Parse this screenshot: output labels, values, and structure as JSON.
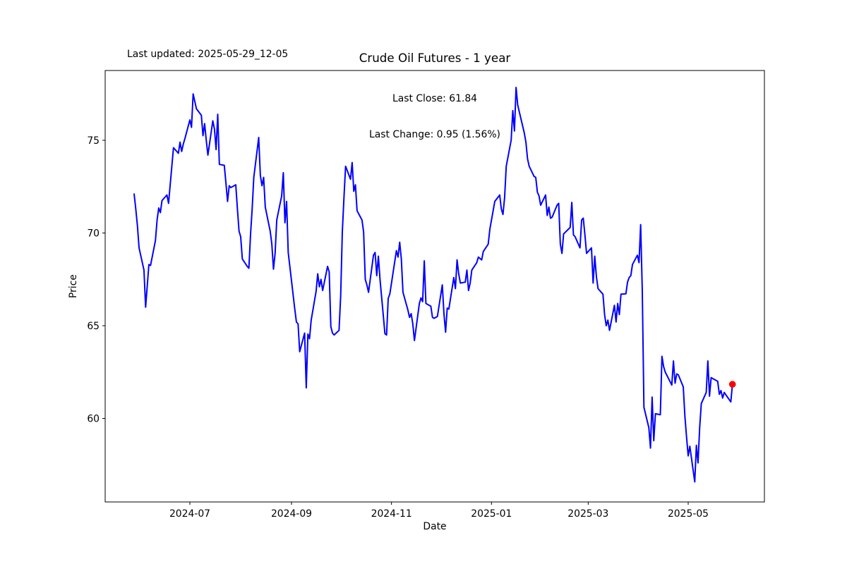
{
  "header": {
    "last_updated": "Last updated: 2025-05-29_12-05",
    "title": "Crude Oil Futures - 1 year"
  },
  "annotation": {
    "last_close_line": "Last Close: 61.84",
    "last_change_line": "Last Change: 0.95 (1.56%)"
  },
  "colors": {
    "line": "#0000ff",
    "last_point": "#ff0000",
    "frame": "#000000",
    "background": "#ffffff",
    "text": "#000000"
  },
  "chart_data": {
    "type": "line",
    "title": "Crude Oil Futures - 1 year",
    "xlabel": "Date",
    "ylabel": "Price",
    "legend": "none",
    "grid": false,
    "last_close": 61.84,
    "last_change": 0.95,
    "last_change_pct": 1.56,
    "ylim": [
      55.4,
      78.95
    ],
    "xlim": [
      "2024-05-10",
      "2025-06-16"
    ],
    "yticks": [
      60,
      65,
      70,
      75
    ],
    "xticks": [
      {
        "date": "2024-07-01",
        "label": "2024-07"
      },
      {
        "date": "2024-09-01",
        "label": "2024-09"
      },
      {
        "date": "2024-11-01",
        "label": "2024-11"
      },
      {
        "date": "2025-01-01",
        "label": "2025-01"
      },
      {
        "date": "2025-03-01",
        "label": "2025-03"
      },
      {
        "date": "2025-05-01",
        "label": "2025-05"
      }
    ],
    "series": [
      {
        "name": "price",
        "points": [
          [
            "2024-05-28",
            72.1
          ],
          [
            "2024-05-29",
            71.3
          ],
          [
            "2024-05-30",
            70.4
          ],
          [
            "2024-05-31",
            69.2
          ],
          [
            "2024-06-03",
            68.0
          ],
          [
            "2024-06-04",
            66.0
          ],
          [
            "2024-06-06",
            68.3
          ],
          [
            "2024-06-07",
            68.25
          ],
          [
            "2024-06-10",
            69.6
          ],
          [
            "2024-06-11",
            70.7
          ],
          [
            "2024-06-12",
            71.35
          ],
          [
            "2024-06-13",
            71.1
          ],
          [
            "2024-06-14",
            71.75
          ],
          [
            "2024-06-17",
            72.05
          ],
          [
            "2024-06-18",
            71.6
          ],
          [
            "2024-06-20",
            73.6
          ],
          [
            "2024-06-21",
            74.6
          ],
          [
            "2024-06-24",
            74.3
          ],
          [
            "2024-06-25",
            74.9
          ],
          [
            "2024-06-26",
            74.4
          ],
          [
            "2024-06-27",
            74.8
          ],
          [
            "2024-06-28",
            75.1
          ],
          [
            "2024-07-01",
            76.1
          ],
          [
            "2024-07-02",
            75.7
          ],
          [
            "2024-07-03",
            77.5
          ],
          [
            "2024-07-05",
            76.7
          ],
          [
            "2024-07-08",
            76.35
          ],
          [
            "2024-07-09",
            75.25
          ],
          [
            "2024-07-10",
            75.9
          ],
          [
            "2024-07-11",
            75.0
          ],
          [
            "2024-07-12",
            74.2
          ],
          [
            "2024-07-15",
            76.05
          ],
          [
            "2024-07-16",
            75.6
          ],
          [
            "2024-07-17",
            74.5
          ],
          [
            "2024-07-18",
            76.4
          ],
          [
            "2024-07-19",
            73.7
          ],
          [
            "2024-07-22",
            73.65
          ],
          [
            "2024-07-23",
            72.7
          ],
          [
            "2024-07-24",
            71.7
          ],
          [
            "2024-07-25",
            72.55
          ],
          [
            "2024-07-26",
            72.45
          ],
          [
            "2024-07-29",
            72.6
          ],
          [
            "2024-07-30",
            71.3
          ],
          [
            "2024-07-31",
            70.1
          ],
          [
            "2024-08-01",
            69.8
          ],
          [
            "2024-08-02",
            68.6
          ],
          [
            "2024-08-05",
            68.2
          ],
          [
            "2024-08-06",
            68.1
          ],
          [
            "2024-08-07",
            69.9
          ],
          [
            "2024-08-08",
            71.3
          ],
          [
            "2024-08-09",
            73.0
          ],
          [
            "2024-08-12",
            75.15
          ],
          [
            "2024-08-13",
            73.1
          ],
          [
            "2024-08-14",
            72.55
          ],
          [
            "2024-08-15",
            73.0
          ],
          [
            "2024-08-16",
            71.4
          ],
          [
            "2024-08-19",
            70.1
          ],
          [
            "2024-08-20",
            69.4
          ],
          [
            "2024-08-21",
            68.05
          ],
          [
            "2024-08-22",
            68.9
          ],
          [
            "2024-08-23",
            70.7
          ],
          [
            "2024-08-26",
            72.0
          ],
          [
            "2024-08-27",
            73.25
          ],
          [
            "2024-08-28",
            70.55
          ],
          [
            "2024-08-29",
            71.7
          ],
          [
            "2024-08-30",
            68.95
          ],
          [
            "2024-09-03",
            65.9
          ],
          [
            "2024-09-04",
            65.2
          ],
          [
            "2024-09-05",
            65.1
          ],
          [
            "2024-09-06",
            63.6
          ],
          [
            "2024-09-09",
            64.6
          ],
          [
            "2024-09-10",
            61.65
          ],
          [
            "2024-09-11",
            64.55
          ],
          [
            "2024-09-12",
            64.3
          ],
          [
            "2024-09-13",
            65.3
          ],
          [
            "2024-09-16",
            66.85
          ],
          [
            "2024-09-17",
            67.8
          ],
          [
            "2024-09-18",
            67.1
          ],
          [
            "2024-09-19",
            67.5
          ],
          [
            "2024-09-20",
            66.9
          ],
          [
            "2024-09-23",
            68.2
          ],
          [
            "2024-09-24",
            67.9
          ],
          [
            "2024-09-25",
            64.95
          ],
          [
            "2024-09-26",
            64.6
          ],
          [
            "2024-09-27",
            64.5
          ],
          [
            "2024-09-30",
            64.75
          ],
          [
            "2024-10-01",
            66.6
          ],
          [
            "2024-10-02",
            70.05
          ],
          [
            "2024-10-03",
            71.9
          ],
          [
            "2024-10-04",
            73.6
          ],
          [
            "2024-10-07",
            72.9
          ],
          [
            "2024-10-08",
            73.8
          ],
          [
            "2024-10-09",
            72.25
          ],
          [
            "2024-10-10",
            72.6
          ],
          [
            "2024-10-11",
            71.2
          ],
          [
            "2024-10-14",
            70.7
          ],
          [
            "2024-10-15",
            70.05
          ],
          [
            "2024-10-16",
            67.5
          ],
          [
            "2024-10-17",
            67.2
          ],
          [
            "2024-10-18",
            66.8
          ],
          [
            "2024-10-21",
            68.8
          ],
          [
            "2024-10-22",
            68.95
          ],
          [
            "2024-10-23",
            67.7
          ],
          [
            "2024-10-24",
            68.75
          ],
          [
            "2024-10-25",
            67.5
          ],
          [
            "2024-10-28",
            64.57
          ],
          [
            "2024-10-29",
            64.5
          ],
          [
            "2024-10-30",
            66.47
          ],
          [
            "2024-10-31",
            66.72
          ],
          [
            "2024-11-01",
            67.3
          ],
          [
            "2024-11-04",
            69.05
          ],
          [
            "2024-11-05",
            68.7
          ],
          [
            "2024-11-06",
            69.5
          ],
          [
            "2024-11-07",
            68.6
          ],
          [
            "2024-11-08",
            66.8
          ],
          [
            "2024-11-11",
            65.85
          ],
          [
            "2024-11-12",
            65.45
          ],
          [
            "2024-11-13",
            65.65
          ],
          [
            "2024-11-14",
            65.1
          ],
          [
            "2024-11-15",
            64.2
          ],
          [
            "2024-11-18",
            66.2
          ],
          [
            "2024-11-19",
            66.5
          ],
          [
            "2024-11-20",
            66.3
          ],
          [
            "2024-11-21",
            68.5
          ],
          [
            "2024-11-22",
            66.2
          ],
          [
            "2024-11-25",
            66.05
          ],
          [
            "2024-11-26",
            65.45
          ],
          [
            "2024-11-27",
            65.4
          ],
          [
            "2024-11-29",
            65.5
          ],
          [
            "2024-12-02",
            67.2
          ],
          [
            "2024-12-03",
            65.65
          ],
          [
            "2024-12-04",
            64.65
          ],
          [
            "2024-12-05",
            65.95
          ],
          [
            "2024-12-06",
            65.9
          ],
          [
            "2024-12-09",
            67.6
          ],
          [
            "2024-12-10",
            67.0
          ],
          [
            "2024-12-11",
            68.55
          ],
          [
            "2024-12-12",
            67.8
          ],
          [
            "2024-12-13",
            67.3
          ],
          [
            "2024-12-16",
            67.35
          ],
          [
            "2024-12-17",
            68.0
          ],
          [
            "2024-12-18",
            66.9
          ],
          [
            "2024-12-19",
            67.3
          ],
          [
            "2024-12-20",
            68.0
          ],
          [
            "2024-12-23",
            68.4
          ],
          [
            "2024-12-24",
            68.7
          ],
          [
            "2024-12-26",
            68.55
          ],
          [
            "2024-12-27",
            69.0
          ],
          [
            "2024-12-30",
            69.4
          ],
          [
            "2024-12-31",
            70.2
          ],
          [
            "2025-01-02",
            71.2
          ],
          [
            "2025-01-03",
            71.7
          ],
          [
            "2025-01-06",
            72.05
          ],
          [
            "2025-01-07",
            71.3
          ],
          [
            "2025-01-08",
            71.0
          ],
          [
            "2025-01-09",
            71.9
          ],
          [
            "2025-01-10",
            73.6
          ],
          [
            "2025-01-13",
            75.0
          ],
          [
            "2025-01-14",
            76.6
          ],
          [
            "2025-01-15",
            75.5
          ],
          [
            "2025-01-16",
            77.85
          ],
          [
            "2025-01-17",
            76.9
          ],
          [
            "2025-01-21",
            75.4
          ],
          [
            "2025-01-22",
            74.9
          ],
          [
            "2025-01-23",
            74.0
          ],
          [
            "2025-01-24",
            73.6
          ],
          [
            "2025-01-27",
            73.05
          ],
          [
            "2025-01-28",
            73.0
          ],
          [
            "2025-01-29",
            72.2
          ],
          [
            "2025-01-30",
            72.0
          ],
          [
            "2025-01-31",
            71.5
          ],
          [
            "2025-02-03",
            72.05
          ],
          [
            "2025-02-04",
            70.95
          ],
          [
            "2025-02-05",
            71.4
          ],
          [
            "2025-02-06",
            70.8
          ],
          [
            "2025-02-07",
            70.85
          ],
          [
            "2025-02-10",
            71.5
          ],
          [
            "2025-02-11",
            71.6
          ],
          [
            "2025-02-12",
            69.4
          ],
          [
            "2025-02-13",
            68.9
          ],
          [
            "2025-02-14",
            69.95
          ],
          [
            "2025-02-18",
            70.3
          ],
          [
            "2025-02-19",
            71.65
          ],
          [
            "2025-02-20",
            69.9
          ],
          [
            "2025-02-21",
            69.8
          ],
          [
            "2025-02-24",
            69.2
          ],
          [
            "2025-02-25",
            70.7
          ],
          [
            "2025-02-26",
            70.8
          ],
          [
            "2025-02-27",
            69.9
          ],
          [
            "2025-02-28",
            68.9
          ],
          [
            "2025-03-03",
            69.2
          ],
          [
            "2025-03-04",
            67.3
          ],
          [
            "2025-03-05",
            68.75
          ],
          [
            "2025-03-06",
            67.65
          ],
          [
            "2025-03-07",
            67.0
          ],
          [
            "2025-03-10",
            66.7
          ],
          [
            "2025-03-11",
            65.6
          ],
          [
            "2025-03-12",
            65.0
          ],
          [
            "2025-03-13",
            65.3
          ],
          [
            "2025-03-14",
            64.75
          ],
          [
            "2025-03-17",
            66.1
          ],
          [
            "2025-03-18",
            65.2
          ],
          [
            "2025-03-19",
            66.2
          ],
          [
            "2025-03-20",
            65.6
          ],
          [
            "2025-03-21",
            66.7
          ],
          [
            "2025-03-24",
            66.72
          ],
          [
            "2025-03-25",
            67.35
          ],
          [
            "2025-03-26",
            67.6
          ],
          [
            "2025-03-27",
            67.7
          ],
          [
            "2025-03-28",
            68.3
          ],
          [
            "2025-03-31",
            68.8
          ],
          [
            "2025-04-01",
            68.4
          ],
          [
            "2025-04-02",
            70.45
          ],
          [
            "2025-04-03",
            66.9
          ],
          [
            "2025-04-04",
            60.6
          ],
          [
            "2025-04-07",
            59.5
          ],
          [
            "2025-04-08",
            58.4
          ],
          [
            "2025-04-09",
            61.15
          ],
          [
            "2025-04-10",
            58.8
          ],
          [
            "2025-04-11",
            60.25
          ],
          [
            "2025-04-14",
            60.2
          ],
          [
            "2025-04-15",
            63.35
          ],
          [
            "2025-04-16",
            62.8
          ],
          [
            "2025-04-17",
            62.5
          ],
          [
            "2025-04-21",
            61.8
          ],
          [
            "2025-04-22",
            63.1
          ],
          [
            "2025-04-23",
            61.9
          ],
          [
            "2025-04-24",
            62.4
          ],
          [
            "2025-04-25",
            62.35
          ],
          [
            "2025-04-28",
            61.7
          ],
          [
            "2025-04-29",
            60.1
          ],
          [
            "2025-04-30",
            59.0
          ],
          [
            "2025-05-01",
            57.98
          ],
          [
            "2025-05-02",
            58.5
          ],
          [
            "2025-05-05",
            56.58
          ],
          [
            "2025-05-06",
            58.55
          ],
          [
            "2025-05-07",
            57.6
          ],
          [
            "2025-05-08",
            59.5
          ],
          [
            "2025-05-09",
            60.8
          ],
          [
            "2025-05-12",
            61.4
          ],
          [
            "2025-05-13",
            63.1
          ],
          [
            "2025-05-14",
            61.2
          ],
          [
            "2025-05-15",
            62.2
          ],
          [
            "2025-05-16",
            62.15
          ],
          [
            "2025-05-19",
            62.0
          ],
          [
            "2025-05-20",
            61.3
          ],
          [
            "2025-05-21",
            61.5
          ],
          [
            "2025-05-22",
            61.1
          ],
          [
            "2025-05-23",
            61.4
          ],
          [
            "2025-05-27",
            60.89
          ],
          [
            "2025-05-28",
            61.84
          ]
        ]
      }
    ]
  }
}
